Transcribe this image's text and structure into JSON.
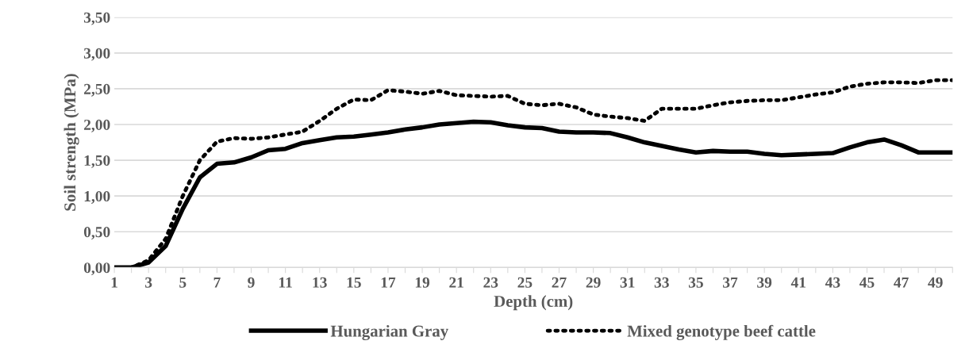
{
  "chart_data": {
    "type": "line",
    "xlabel": "Depth (cm)",
    "ylabel": "Soil strength (MPa)",
    "categories": [
      "1",
      null,
      "3",
      null,
      "5",
      null,
      "7",
      null,
      "9",
      null,
      "11",
      null,
      "13",
      null,
      "15",
      null,
      "17",
      null,
      "19",
      null,
      "21",
      null,
      "23",
      null,
      "25",
      null,
      "27",
      null,
      "29",
      null,
      "31",
      null,
      "33",
      null,
      "35",
      null,
      "37",
      null,
      "39",
      null,
      "41",
      null,
      "43",
      null,
      "45",
      null,
      "47",
      null,
      "49",
      null
    ],
    "series": [
      {
        "name": "Hungarian Gray",
        "color": "#000000",
        "line_style": "solid",
        "values": [
          0,
          0,
          0.07,
          0.3,
          0.82,
          1.26,
          1.45,
          1.47,
          1.54,
          1.64,
          1.66,
          1.74,
          1.78,
          1.82,
          1.83,
          1.86,
          1.89,
          1.93,
          1.96,
          2.0,
          2.02,
          2.04,
          2.03,
          1.99,
          1.96,
          1.95,
          1.9,
          1.89,
          1.89,
          1.88,
          1.82,
          1.75,
          1.7,
          1.65,
          1.61,
          1.63,
          1.62,
          1.62,
          1.59,
          1.57,
          1.58,
          1.59,
          1.6,
          1.68,
          1.75,
          1.79,
          1.71,
          1.61,
          1.61,
          1.61
        ]
      },
      {
        "name": "Mixed genotype beef cattle",
        "color": "#000000",
        "line_style": "dotted",
        "values": [
          0,
          0,
          0.1,
          0.4,
          1.0,
          1.5,
          1.76,
          1.81,
          1.8,
          1.82,
          1.86,
          1.9,
          2.05,
          2.22,
          2.35,
          2.34,
          2.48,
          2.46,
          2.43,
          2.47,
          2.41,
          2.4,
          2.39,
          2.4,
          2.29,
          2.27,
          2.29,
          2.24,
          2.14,
          2.11,
          2.09,
          2.05,
          2.22,
          2.22,
          2.22,
          2.27,
          2.31,
          2.33,
          2.34,
          2.34,
          2.38,
          2.42,
          2.45,
          2.53,
          2.57,
          2.59,
          2.59,
          2.58,
          2.62,
          2.62
        ]
      }
    ],
    "ylim": [
      0,
      3.5
    ],
    "yticks": [
      {
        "value": 0,
        "label": "0,00"
      },
      {
        "value": 0.5,
        "label": "0,50"
      },
      {
        "value": 1,
        "label": "1,00"
      },
      {
        "value": 1.5,
        "label": "1,50"
      },
      {
        "value": 2,
        "label": "2,00"
      },
      {
        "value": 2.5,
        "label": "2,50"
      },
      {
        "value": 3,
        "label": "3,00"
      },
      {
        "value": 3.5,
        "label": "3,50"
      }
    ],
    "grid": "y",
    "legend": "bottom"
  }
}
